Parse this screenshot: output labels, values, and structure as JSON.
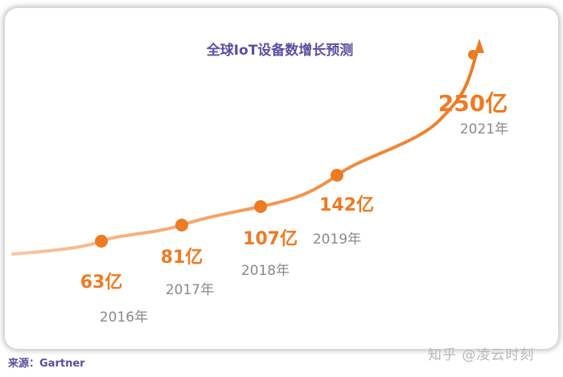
{
  "chart_data": {
    "type": "line",
    "title": "全球IoT设备数增长预测",
    "xlabel": "",
    "ylabel": "",
    "x": [
      "2016年",
      "2017年",
      "2018年",
      "2019年",
      "2021年"
    ],
    "values": [
      63,
      81,
      107,
      142,
      250
    ],
    "value_labels": [
      "63亿",
      "81亿",
      "107亿",
      "142亿",
      "250亿"
    ],
    "unit": "亿",
    "grid": false,
    "colors": {
      "line": "#f08a3c",
      "point": "#ee7a22",
      "value_text": "#ee7a22",
      "year_text": "#8a8a8a",
      "title": "#5b4fa0"
    }
  },
  "footer": {
    "source": "来源：Gartner",
    "watermark": "知乎 @凌云时刻"
  }
}
